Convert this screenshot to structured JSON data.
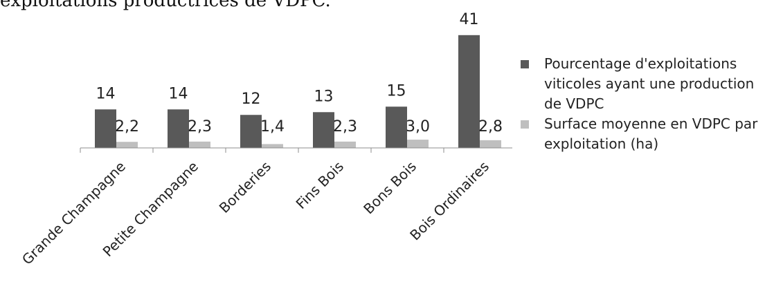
{
  "intro_text": "exploitations productrices de VDPC.",
  "chart_data": {
    "type": "bar",
    "categories": [
      "Grande Champagne",
      "Petite Champagne",
      "Borderies",
      "Fins Bois",
      "Bons Bois",
      "Bois Ordinaires"
    ],
    "series": [
      {
        "name": "Pourcentage d'exploitations viticoles ayant une production de VDPC",
        "values": [
          14,
          14,
          12,
          13,
          15,
          41
        ],
        "labels": [
          "14",
          "14",
          "12",
          "13",
          "15",
          "41"
        ],
        "color": "#595959"
      },
      {
        "name": "Surface moyenne en VDPC par exploitation (ha)",
        "values": [
          2.2,
          2.3,
          1.4,
          2.3,
          3.0,
          2.8
        ],
        "labels": [
          "2,2",
          "2,3",
          "1,4",
          "2,3",
          "3,0",
          "2,8"
        ],
        "color": "#bfbfbf"
      }
    ],
    "grid": false,
    "legend_position": "right"
  }
}
